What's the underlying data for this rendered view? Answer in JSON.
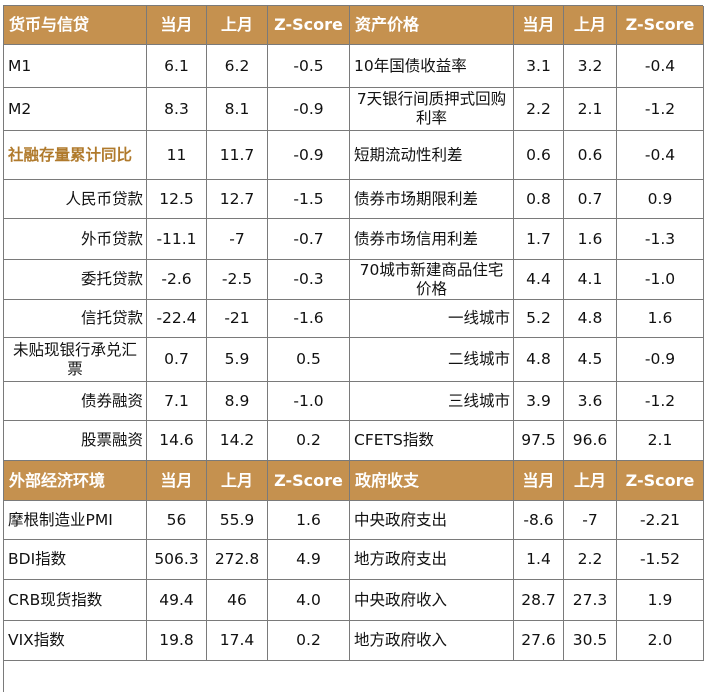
{
  "top": {
    "left_header": [
      "货币与信贷",
      "当月",
      "上月",
      "Z-Score"
    ],
    "right_header": [
      "资产价格",
      "当月",
      "上月",
      "Z-Score"
    ],
    "left_rows": [
      {
        "label": "M1",
        "cur": "6.1",
        "prev": "6.2",
        "z": "-0.5"
      },
      {
        "label": "M2",
        "cur": "8.3",
        "prev": "8.1",
        "z": "-0.9"
      },
      {
        "label": "社融存量累计同比",
        "cur": "11",
        "prev": "11.7",
        "z": "-0.9"
      },
      {
        "label": "人民币贷款",
        "cur": "12.5",
        "prev": "12.7",
        "z": "-1.5"
      },
      {
        "label": "外币贷款",
        "cur": "-11.1",
        "prev": "-7",
        "z": "-0.7"
      },
      {
        "label": "委托贷款",
        "cur": "-2.6",
        "prev": "-2.5",
        "z": "-0.3"
      },
      {
        "label": "信托贷款",
        "cur": "-22.4",
        "prev": "-21",
        "z": "-1.6"
      },
      {
        "label": "未贴现银行承兑汇票",
        "cur": "0.7",
        "prev": "5.9",
        "z": "0.5"
      },
      {
        "label": "债券融资",
        "cur": "7.1",
        "prev": "8.9",
        "z": "-1.0"
      },
      {
        "label": "股票融资",
        "cur": "14.6",
        "prev": "14.2",
        "z": "0.2"
      }
    ],
    "right_rows": [
      {
        "label": "10年国债收益率",
        "cur": "3.1",
        "prev": "3.2",
        "z": "-0.4"
      },
      {
        "label": "7天银行间质押式回购利率",
        "cur": "2.2",
        "prev": "2.1",
        "z": "-1.2"
      },
      {
        "label": "短期流动性利差",
        "cur": "0.6",
        "prev": "0.6",
        "z": "-0.4"
      },
      {
        "label": "债券市场期限利差",
        "cur": "0.8",
        "prev": "0.7",
        "z": "0.9"
      },
      {
        "label": "债券市场信用利差",
        "cur": "1.7",
        "prev": "1.6",
        "z": "-1.3"
      },
      {
        "label": "70城市新建商品住宅价格",
        "cur": "4.4",
        "prev": "4.1",
        "z": "-1.0"
      },
      {
        "label": "一线城市",
        "cur": "5.2",
        "prev": "4.8",
        "z": "1.6"
      },
      {
        "label": "二线城市",
        "cur": "4.8",
        "prev": "4.5",
        "z": "-0.9"
      },
      {
        "label": "三线城市",
        "cur": "3.9",
        "prev": "3.6",
        "z": "-1.2"
      },
      {
        "label": "CFETS指数",
        "cur": "97.5",
        "prev": "96.6",
        "z": "2.1"
      }
    ]
  },
  "bottom": {
    "left_header": [
      "外部经济环境",
      "当月",
      "上月",
      "Z-Score"
    ],
    "right_header": [
      "政府收支",
      "当月",
      "上月",
      "Z-Score"
    ],
    "left_rows": [
      {
        "label": "摩根制造业PMI",
        "cur": "56",
        "prev": "55.9",
        "z": "1.6"
      },
      {
        "label": "BDI指数",
        "cur": "506.3",
        "prev": "272.8",
        "z": "4.9"
      },
      {
        "label": "CRB现货指数",
        "cur": "49.4",
        "prev": "46",
        "z": "4.0"
      },
      {
        "label": "VIX指数",
        "cur": "19.8",
        "prev": "17.4",
        "z": "0.2"
      }
    ],
    "right_rows": [
      {
        "label": "中央政府支出",
        "cur": "-8.6",
        "prev": "-7",
        "z": "-2.21"
      },
      {
        "label": "地方政府支出",
        "cur": "1.4",
        "prev": "2.2",
        "z": "-1.52"
      },
      {
        "label": "中央政府收入",
        "cur": "28.7",
        "prev": "27.3",
        "z": "1.9"
      },
      {
        "label": "地方政府收入",
        "cur": "27.6",
        "prev": "30.5",
        "z": "2.0"
      }
    ]
  },
  "colors": {
    "header_bg": "#c5914f",
    "header_text": "#ffffff",
    "highlight_text": "#b07a2c",
    "grid_line": "#7a7a7a"
  }
}
